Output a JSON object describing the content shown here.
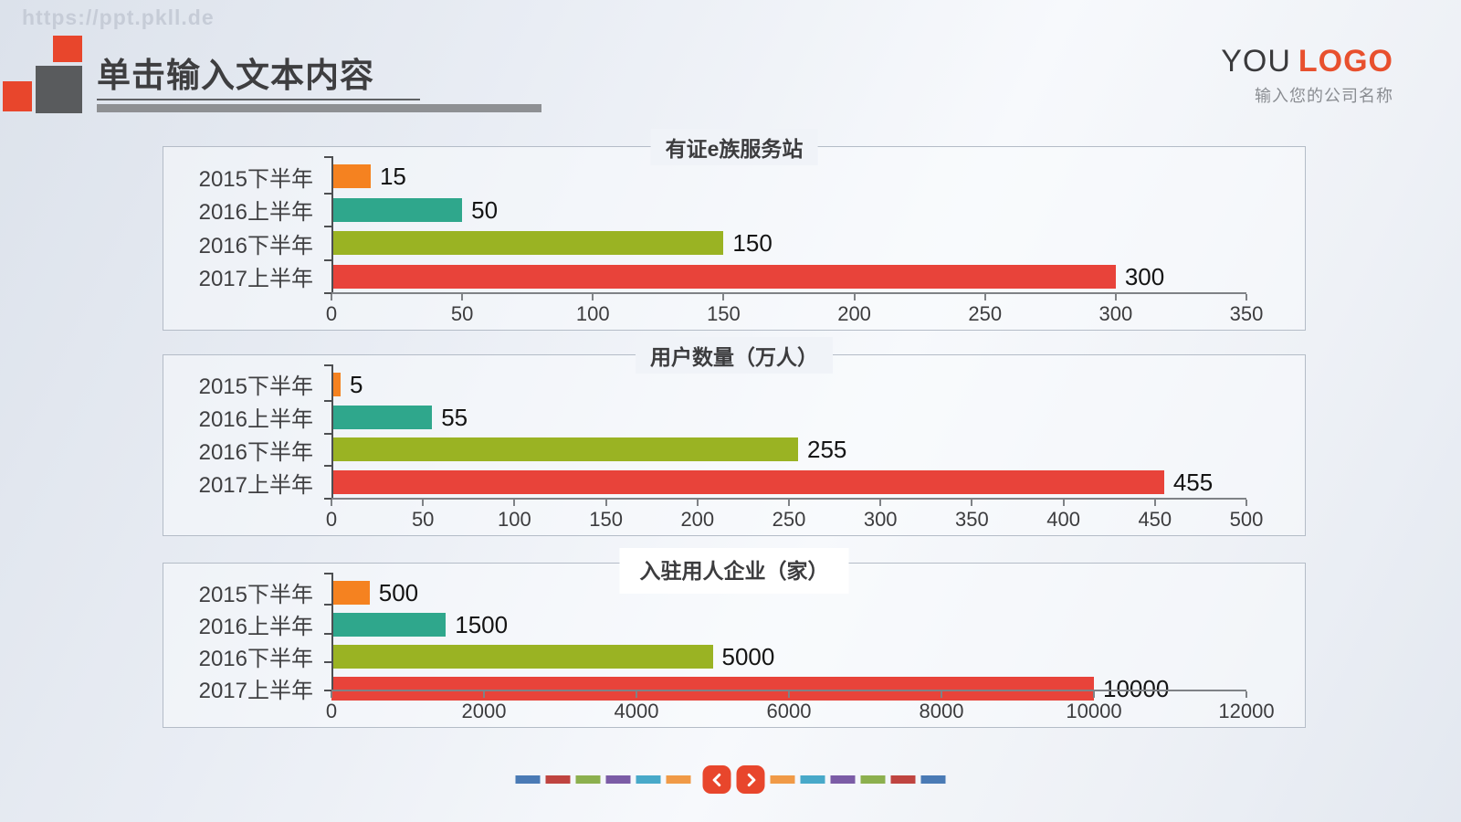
{
  "watermark": "https://ppt.pkll.de",
  "header": {
    "title": "单击输入文本内容",
    "logo_primary": "YOU",
    "logo_accent": "LOGO",
    "logo_subtitle": "输入您的公司名称"
  },
  "colors": {
    "accent_orange": "#e8462c",
    "bar_orange": "#f58220",
    "bar_teal": "#2fa78c",
    "bar_olive": "#9ab323",
    "bar_red": "#e8433a",
    "title_gray": "#3e3e40",
    "box_border": "#b4bcc7"
  },
  "chart_data": [
    {
      "type": "bar",
      "orientation": "horizontal",
      "title": "有证e族服务站",
      "categories": [
        "2015下半年",
        "2016上半年",
        "2016下半年",
        "2017上半年"
      ],
      "values": [
        15,
        50,
        150,
        300
      ],
      "bar_colors": [
        "#f58220",
        "#2fa78c",
        "#9ab323",
        "#e8433a"
      ],
      "xlim": [
        0,
        350
      ],
      "xticks": [
        0,
        50,
        100,
        150,
        200,
        250,
        300,
        350
      ],
      "grid": false,
      "legend": "none",
      "data_labels": true
    },
    {
      "type": "bar",
      "orientation": "horizontal",
      "title": "用户数量（万人）",
      "categories": [
        "2015下半年",
        "2016上半年",
        "2016下半年",
        "2017上半年"
      ],
      "values": [
        5,
        55,
        255,
        455
      ],
      "bar_colors": [
        "#f58220",
        "#2fa78c",
        "#9ab323",
        "#e8433a"
      ],
      "xlim": [
        0,
        500
      ],
      "xticks": [
        0,
        50,
        100,
        150,
        200,
        250,
        300,
        350,
        400,
        450,
        500
      ],
      "grid": false,
      "legend": "none",
      "data_labels": true
    },
    {
      "type": "bar",
      "orientation": "horizontal",
      "title": "入驻用人企业（家）",
      "categories": [
        "2015下半年",
        "2016上半年",
        "2016下半年",
        "2017上半年"
      ],
      "values": [
        500,
        1500,
        5000,
        10000
      ],
      "bar_colors": [
        "#f58220",
        "#2fa78c",
        "#9ab323",
        "#e8433a"
      ],
      "xlim": [
        0,
        12000
      ],
      "xticks": [
        0,
        2000,
        4000,
        6000,
        8000,
        10000,
        12000
      ],
      "grid": false,
      "legend": "none",
      "data_labels": true
    }
  ],
  "footer": {
    "dashes_left": [
      "#4a7ab5",
      "#bf4440",
      "#8cb04e",
      "#7b5ca6",
      "#48a9c9",
      "#f09a47"
    ],
    "dashes_right": [
      "#f09a47",
      "#48a9c9",
      "#7b5ca6",
      "#8cb04e",
      "#bf4440",
      "#4a7ab5"
    ],
    "prev_icon": "chevron-left-icon",
    "next_icon": "chevron-right-icon"
  }
}
